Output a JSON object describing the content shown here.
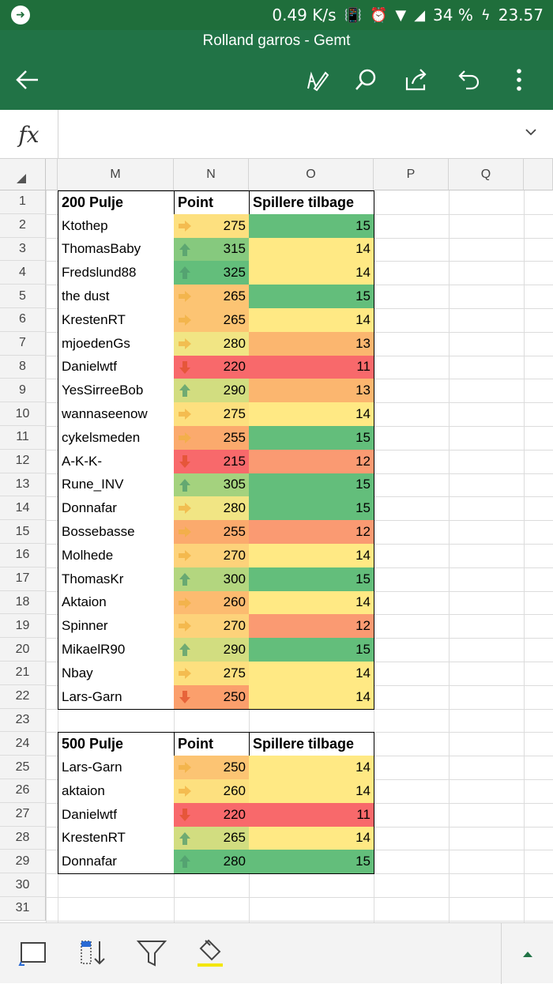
{
  "status": {
    "speed": "0.49 K/s",
    "battery": "34 %",
    "time": "23.57"
  },
  "app": {
    "title": "Rolland garros - Gemt"
  },
  "columns": [
    "M",
    "N",
    "O",
    "P",
    "Q"
  ],
  "rows": [
    "1",
    "2",
    "3",
    "4",
    "5",
    "6",
    "7",
    "8",
    "9",
    "10",
    "11",
    "12",
    "13",
    "14",
    "15",
    "16",
    "17",
    "18",
    "19",
    "20",
    "21",
    "22",
    "23",
    "24",
    "25",
    "26",
    "27",
    "28",
    "29",
    "30",
    "31"
  ],
  "colors": {
    "excel_green": "#217346",
    "green": "#63be7b",
    "yellow": "#ffe984",
    "orange": "#fbb66f",
    "red": "#f8696b",
    "salmon": "#fa9a72"
  },
  "tables": [
    {
      "start_row": 1,
      "headers": [
        "200 Pulje",
        "Point",
        "Spillere tilbage"
      ],
      "entries": [
        {
          "name": "Ktothep",
          "point": "275",
          "arrow": "right",
          "pcolor": "#fde07f",
          "back": "15",
          "bcolor": "#63be7b"
        },
        {
          "name": "ThomasBaby",
          "point": "315",
          "arrow": "up",
          "pcolor": "#86c97e",
          "back": "14",
          "bcolor": "#ffe984"
        },
        {
          "name": "Fredslund88",
          "point": "325",
          "arrow": "up",
          "pcolor": "#63be7b",
          "back": "14",
          "bcolor": "#ffe984"
        },
        {
          "name": "the dust",
          "point": "265",
          "arrow": "right",
          "pcolor": "#fcc473",
          "back": "15",
          "bcolor": "#63be7b"
        },
        {
          "name": "KrestenRT",
          "point": "265",
          "arrow": "right",
          "pcolor": "#fcc473",
          "back": "14",
          "bcolor": "#ffe984"
        },
        {
          "name": "mjoedenGs",
          "point": "280",
          "arrow": "right",
          "pcolor": "#f1e584",
          "back": "13",
          "bcolor": "#fbb66f"
        },
        {
          "name": "Danielwtf",
          "point": "220",
          "arrow": "down",
          "pcolor": "#f8696b",
          "back": "11",
          "bcolor": "#f8696b"
        },
        {
          "name": "YesSirreeBob",
          "point": "290",
          "arrow": "up",
          "pcolor": "#d2dd80",
          "back": "13",
          "bcolor": "#fbb66f"
        },
        {
          "name": "wannaseenow",
          "point": "275",
          "arrow": "right",
          "pcolor": "#fde07f",
          "back": "14",
          "bcolor": "#ffe984"
        },
        {
          "name": "cykelsmeden",
          "point": "255",
          "arrow": "right",
          "pcolor": "#fbaa6d",
          "back": "15",
          "bcolor": "#63be7b"
        },
        {
          "name": "A-K-K-",
          "point": "215",
          "arrow": "down",
          "pcolor": "#f8696b",
          "back": "12",
          "bcolor": "#fa9a72"
        },
        {
          "name": "Rune_INV",
          "point": "305",
          "arrow": "up",
          "pcolor": "#a4d27e",
          "back": "15",
          "bcolor": "#63be7b"
        },
        {
          "name": "Donnafar",
          "point": "280",
          "arrow": "right",
          "pcolor": "#f1e584",
          "back": "15",
          "bcolor": "#63be7b"
        },
        {
          "name": "Bossebasse",
          "point": "255",
          "arrow": "right",
          "pcolor": "#fbaa6d",
          "back": "12",
          "bcolor": "#fa9a72"
        },
        {
          "name": "Molhede",
          "point": "270",
          "arrow": "right",
          "pcolor": "#fdd27a",
          "back": "14",
          "bcolor": "#ffe984"
        },
        {
          "name": "ThomasKr",
          "point": "300",
          "arrow": "up",
          "pcolor": "#b3d67f",
          "back": "15",
          "bcolor": "#63be7b"
        },
        {
          "name": "Aktaion",
          "point": "260",
          "arrow": "right",
          "pcolor": "#fcbb70",
          "back": "14",
          "bcolor": "#ffe984"
        },
        {
          "name": "Spinner",
          "point": "270",
          "arrow": "right",
          "pcolor": "#fdd27a",
          "back": "12",
          "bcolor": "#fa9a72"
        },
        {
          "name": "MikaelR90",
          "point": "290",
          "arrow": "up",
          "pcolor": "#d2dd80",
          "back": "15",
          "bcolor": "#63be7b"
        },
        {
          "name": "Nbay",
          "point": "275",
          "arrow": "right",
          "pcolor": "#fde07f",
          "back": "14",
          "bcolor": "#ffe984"
        },
        {
          "name": "Lars-Garn",
          "point": "250",
          "arrow": "down",
          "pcolor": "#fb9f6c",
          "back": "14",
          "bcolor": "#ffe984"
        }
      ]
    },
    {
      "start_row": 24,
      "headers": [
        "500 Pulje",
        "Point",
        "Spillere tilbage"
      ],
      "entries": [
        {
          "name": "Lars-Garn",
          "point": "250",
          "arrow": "right",
          "pcolor": "#fcc473",
          "back": "14",
          "bcolor": "#ffe984"
        },
        {
          "name": "aktaion",
          "point": "260",
          "arrow": "right",
          "pcolor": "#fde07f",
          "back": "14",
          "bcolor": "#ffe984"
        },
        {
          "name": "Danielwtf",
          "point": "220",
          "arrow": "down",
          "pcolor": "#f8696b",
          "back": "11",
          "bcolor": "#f8696b"
        },
        {
          "name": "KrestenRT",
          "point": "265",
          "arrow": "up",
          "pcolor": "#d2dd80",
          "back": "14",
          "bcolor": "#ffe984"
        },
        {
          "name": "Donnafar",
          "point": "280",
          "arrow": "up",
          "pcolor": "#63be7b",
          "back": "15",
          "bcolor": "#63be7b"
        }
      ]
    }
  ]
}
